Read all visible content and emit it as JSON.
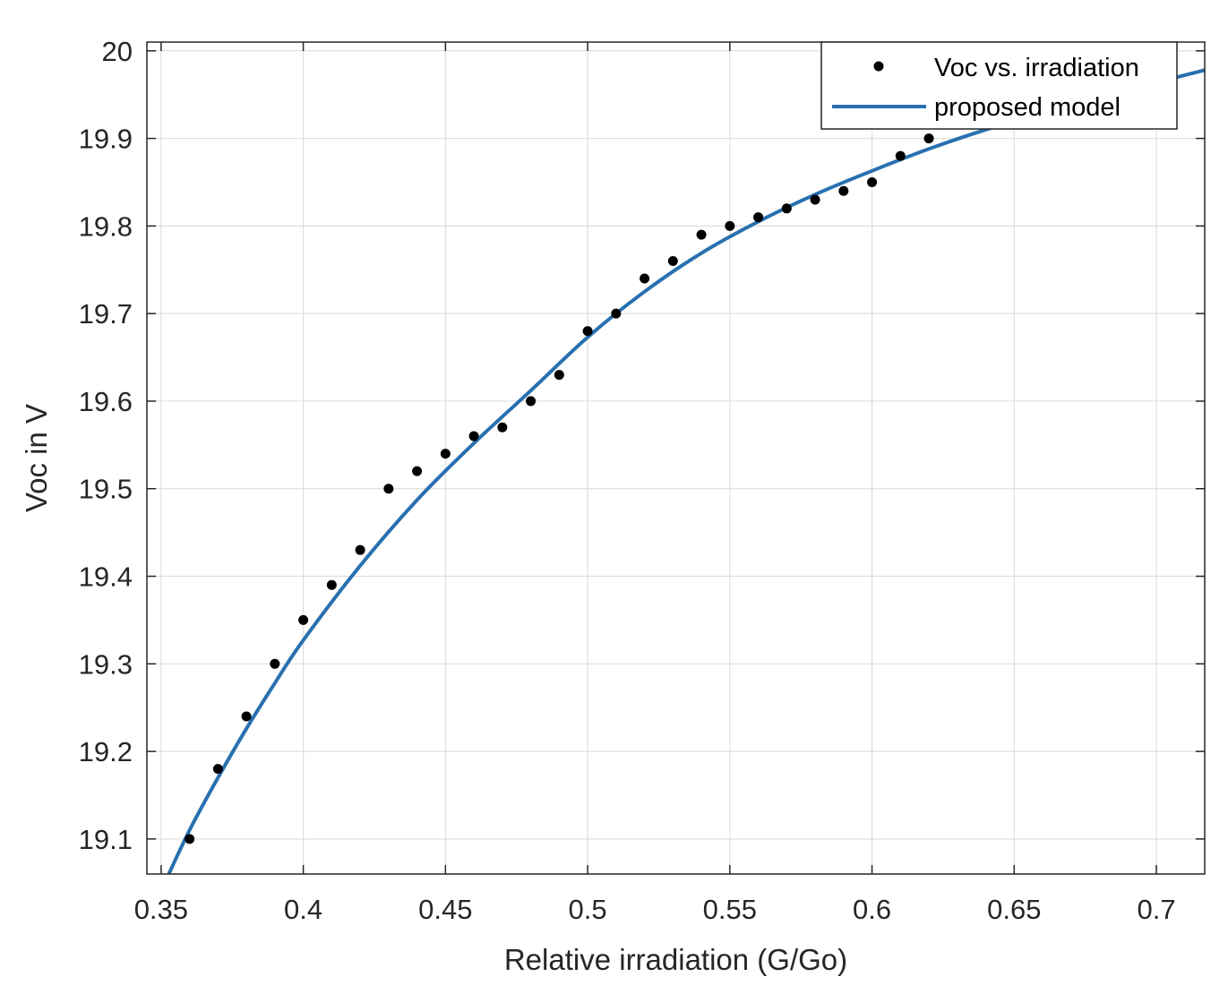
{
  "chart_data": {
    "type": "scatter",
    "xlabel": "Relative irradiation (G/Go)",
    "ylabel": "Voc in V",
    "xlim": [
      0.345,
      0.717
    ],
    "ylim": [
      19.06,
      20.01
    ],
    "xticks": [
      0.35,
      0.4,
      0.45,
      0.5,
      0.55,
      0.6,
      0.65,
      0.7
    ],
    "xtick_labels": [
      "0.35",
      "0.4",
      "0.45",
      "0.5",
      "0.55",
      "0.6",
      "0.65",
      "0.7"
    ],
    "yticks": [
      19.1,
      19.2,
      19.3,
      19.4,
      19.5,
      19.6,
      19.7,
      19.8,
      19.9,
      20
    ],
    "ytick_labels": [
      "19.1",
      "19.2",
      "19.3",
      "19.4",
      "19.5",
      "19.6",
      "19.7",
      "19.8",
      "19.9",
      "20"
    ],
    "grid": true,
    "legend_position": "top-right",
    "series": [
      {
        "name": "Voc vs. irradiation",
        "kind": "markers",
        "color": "#000000",
        "x": [
          0.36,
          0.37,
          0.38,
          0.39,
          0.4,
          0.41,
          0.42,
          0.43,
          0.44,
          0.45,
          0.46,
          0.47,
          0.48,
          0.49,
          0.5,
          0.51,
          0.52,
          0.53,
          0.54,
          0.55,
          0.56,
          0.57,
          0.58,
          0.59,
          0.6,
          0.61,
          0.62
        ],
        "y": [
          19.1,
          19.18,
          19.24,
          19.3,
          19.35,
          19.39,
          19.43,
          19.5,
          19.52,
          19.54,
          19.56,
          19.57,
          19.6,
          19.63,
          19.68,
          19.7,
          19.74,
          19.76,
          19.79,
          19.8,
          19.81,
          19.82,
          19.83,
          19.84,
          19.85,
          19.88,
          19.9
        ]
      },
      {
        "name": "proposed model",
        "kind": "line",
        "color": "#2870b0",
        "x": [
          0.352,
          0.36,
          0.37,
          0.38,
          0.39,
          0.4,
          0.42,
          0.44,
          0.46,
          0.48,
          0.5,
          0.52,
          0.54,
          0.56,
          0.58,
          0.6,
          0.62,
          0.64,
          0.66,
          0.68,
          0.7,
          0.717
        ],
        "y": [
          19.055,
          19.11,
          19.17,
          19.226,
          19.278,
          19.327,
          19.412,
          19.487,
          19.552,
          19.612,
          19.673,
          19.725,
          19.769,
          19.805,
          19.836,
          19.863,
          19.888,
          19.91,
          19.929,
          19.947,
          19.964,
          19.978
        ]
      }
    ]
  }
}
